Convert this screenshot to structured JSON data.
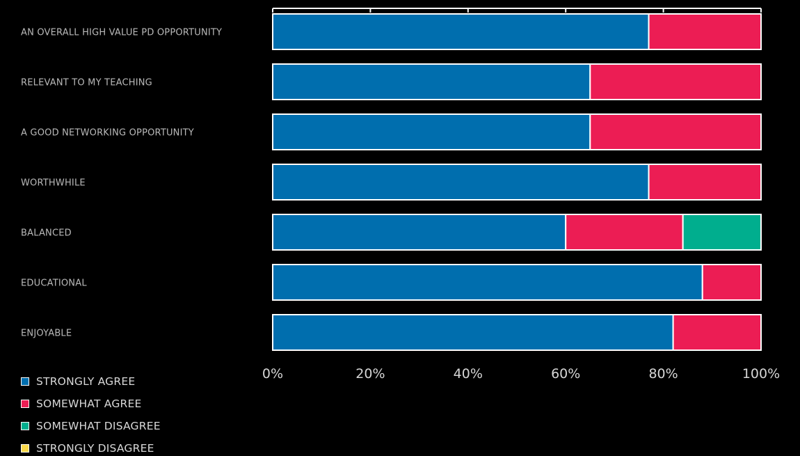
{
  "chart_data": {
    "type": "bar",
    "orientation": "horizontal",
    "stacked": true,
    "categories": [
      "AN OVERALL HIGH VALUE PD OPPORTUNITY",
      "RELEVANT TO MY TEACHING",
      "A GOOD NETWORKING OPPORTUNITY",
      "WORTHWHILE",
      "BALANCED",
      "EDUCATIONAL",
      "ENJOYABLE"
    ],
    "series": [
      {
        "name": "STRONGLY AGREE",
        "color": "#006eae",
        "values": [
          77,
          65,
          65,
          77,
          60,
          88,
          82
        ]
      },
      {
        "name": "SOMEWHAT AGREE",
        "color": "#ec1d54",
        "values": [
          23,
          35,
          35,
          23,
          24,
          12,
          18
        ]
      },
      {
        "name": "SOMEWHAT DISAGREE",
        "color": "#00ae8e",
        "values": [
          0,
          0,
          0,
          0,
          16,
          0,
          0
        ]
      },
      {
        "name": "STRONGLY DISAGREE",
        "color": "#f9d849",
        "values": [
          0,
          0,
          0,
          0,
          0,
          0,
          0
        ]
      }
    ],
    "xlim": [
      0,
      100
    ],
    "x_ticks": [
      0,
      20,
      40,
      60,
      80,
      100
    ],
    "x_tick_labels": [
      "0%",
      "20%",
      "40%",
      "60%",
      "80%",
      "100%"
    ],
    "grid": false,
    "legend_position": "bottom-left",
    "title": "",
    "xlabel": "",
    "ylabel": ""
  }
}
